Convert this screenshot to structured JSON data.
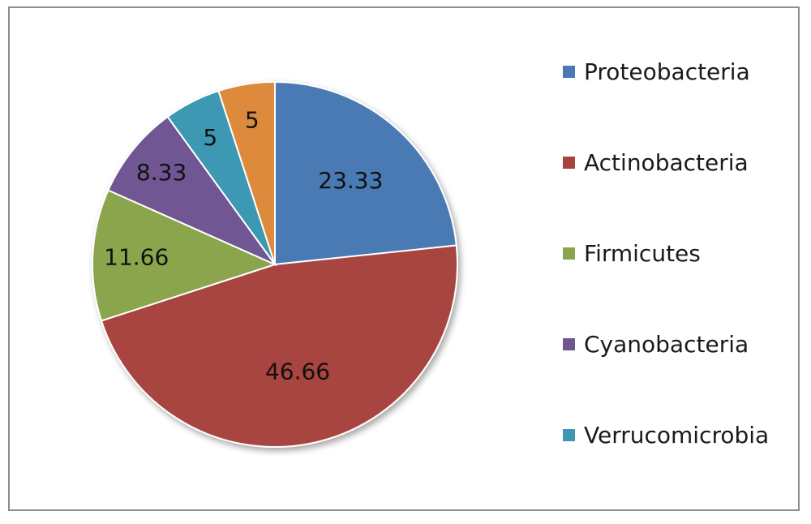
{
  "chart_data": {
    "type": "pie",
    "title": "",
    "slices": [
      {
        "name": "Proteobacteria",
        "value": 23.33,
        "label": "23.33",
        "color": "#4a7ab3"
      },
      {
        "name": "Actinobacteria",
        "value": 46.66,
        "label": "46.66",
        "color": "#a84440"
      },
      {
        "name": "Firmicutes",
        "value": 11.66,
        "label": "11.66",
        "color": "#8aa54c"
      },
      {
        "name": "Cyanobacteria",
        "value": 8.33,
        "label": "8.33",
        "color": "#6f5693"
      },
      {
        "name": "Verrucomicrobia",
        "value": 5,
        "label": "5",
        "color": "#3c98b3"
      },
      {
        "name": "",
        "value": 5,
        "label": "5",
        "color": "#de8a3d"
      }
    ],
    "start_angle": "12 o'clock",
    "direction": "clockwise",
    "legend_position": "right",
    "legend": [
      "Proteobacteria",
      "Actinobacteria",
      "Firmicutes",
      "Cyanobacteria",
      "Verrucomicrobia"
    ]
  }
}
